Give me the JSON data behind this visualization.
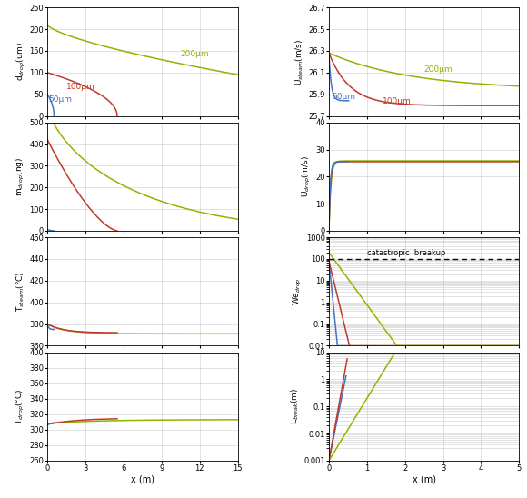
{
  "colors": {
    "50um": "#4472C4",
    "100um": "#C0392B",
    "200um": "#8DB600"
  },
  "left_col": {
    "ax1": {
      "ylabel": "d$_{drop}$(um)",
      "ylim": [
        0,
        250
      ],
      "yticks": [
        0,
        50,
        100,
        150,
        200,
        250
      ],
      "xlim": [
        0,
        15
      ],
      "xticks": [
        0,
        3,
        6,
        9,
        12,
        15
      ]
    },
    "ax2": {
      "ylabel": "m$_{drop}$(ng)",
      "ylim": [
        0,
        500
      ],
      "yticks": [
        0,
        100,
        200,
        300,
        400,
        500
      ],
      "xlim": [
        0,
        15
      ],
      "xticks": [
        0,
        3,
        6,
        9,
        12,
        15
      ]
    },
    "ax3": {
      "ylabel": "T$_{steam}$(°C)",
      "ylim": [
        360,
        460
      ],
      "yticks": [
        360,
        380,
        400,
        420,
        440,
        460
      ],
      "xlim": [
        0,
        15
      ],
      "xticks": [
        0,
        3,
        6,
        9,
        12,
        15
      ]
    },
    "ax4": {
      "ylabel": "T$_{drop}$(°C)",
      "ylim": [
        260,
        400
      ],
      "yticks": [
        260,
        280,
        300,
        320,
        340,
        360,
        380,
        400
      ],
      "xlim": [
        0,
        15
      ],
      "xticks": [
        0,
        3,
        6,
        9,
        12,
        15
      ],
      "xlabel": "x (m)"
    }
  },
  "right_col": {
    "ax1": {
      "ylabel": "U$_{steam}$(m/s)",
      "ylim": [
        25.7,
        26.7
      ],
      "yticks": [
        25.7,
        25.9,
        26.1,
        26.3,
        26.5,
        26.7
      ],
      "xlim": [
        0,
        5
      ],
      "xticks": [
        0,
        1,
        2,
        3,
        4,
        5
      ]
    },
    "ax2": {
      "ylabel": "U$_{drop}$(m/s)",
      "ylim": [
        0,
        40
      ],
      "yticks": [
        0,
        10,
        20,
        30,
        40
      ],
      "xlim": [
        0,
        5
      ],
      "xticks": [
        0,
        1,
        2,
        3,
        4,
        5
      ]
    },
    "ax3": {
      "ylabel": "We$_{drop}$",
      "ylim_log": [
        0.01,
        1000
      ],
      "xlim": [
        0,
        5
      ],
      "xticks": [
        0,
        1,
        2,
        3,
        4,
        5
      ],
      "catastrophic_text": "catastropic  breakup",
      "dashed_line_y": 100
    },
    "ax4": {
      "ylabel": "L$_{break}$(m)",
      "ylim_log": [
        0.001,
        10
      ],
      "xlim": [
        0,
        5
      ],
      "xticks": [
        0,
        1,
        2,
        3,
        4,
        5
      ],
      "xlabel": "x (m)"
    }
  }
}
